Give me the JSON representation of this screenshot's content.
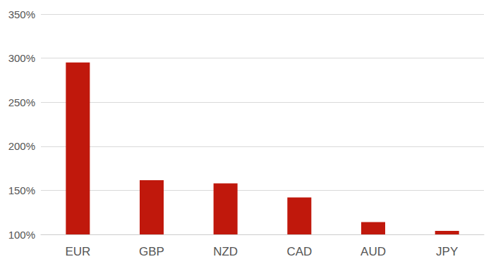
{
  "chart_data": {
    "type": "bar",
    "categories": [
      "EUR",
      "GBP",
      "NZD",
      "CAD",
      "AUD",
      "JPY"
    ],
    "values": [
      295,
      161.5,
      158,
      142,
      114,
      104
    ],
    "color": "#c0180c",
    "ylim": [
      100,
      350
    ],
    "yticks": [
      {
        "value": 100,
        "label": "100%"
      },
      {
        "value": 150,
        "label": "150%"
      },
      {
        "value": 200,
        "label": "200%"
      },
      {
        "value": 250,
        "label": "250%"
      },
      {
        "value": 300,
        "label": "300%"
      },
      {
        "value": 350,
        "label": "350%"
      }
    ],
    "grid": true
  }
}
